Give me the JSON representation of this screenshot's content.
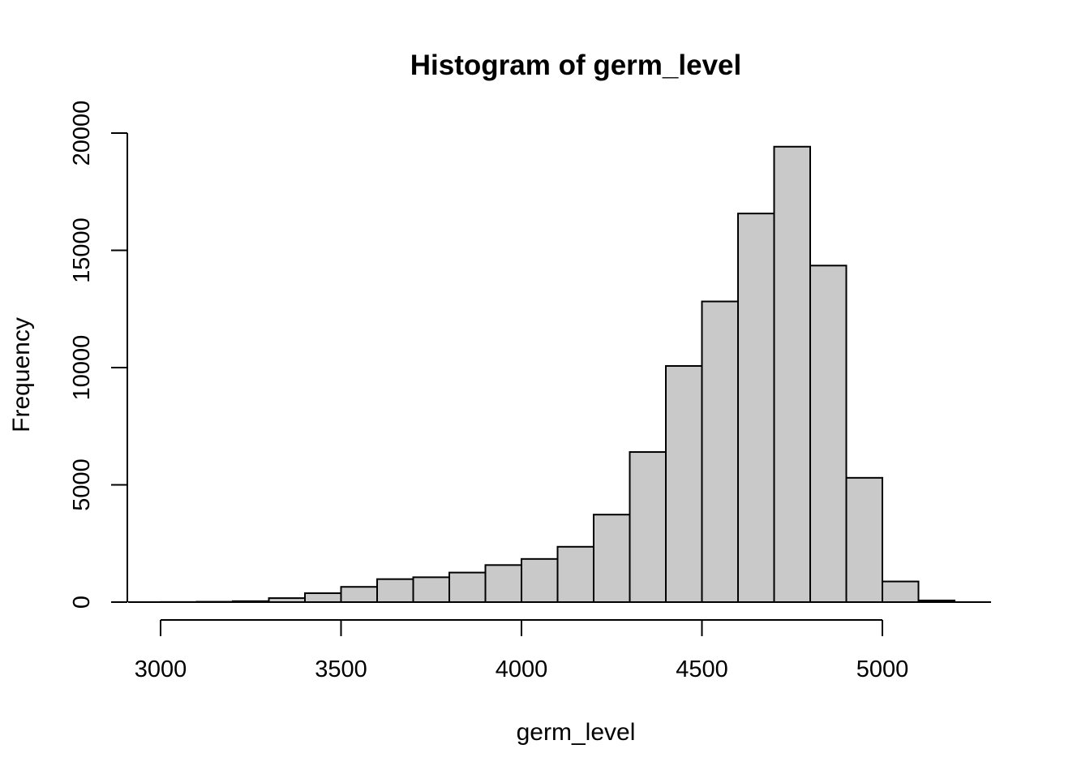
{
  "chart_data": {
    "type": "bar",
    "subtype": "histogram",
    "title": "Histogram of germ_level",
    "xlabel": "germ_level",
    "ylabel": "Frequency",
    "bin_width": 100,
    "bins": [
      [
        3000,
        3100
      ],
      [
        3100,
        3200
      ],
      [
        3200,
        3300
      ],
      [
        3300,
        3400
      ],
      [
        3400,
        3500
      ],
      [
        3500,
        3600
      ],
      [
        3600,
        3700
      ],
      [
        3700,
        3800
      ],
      [
        3800,
        3900
      ],
      [
        3900,
        4000
      ],
      [
        4000,
        4100
      ],
      [
        4100,
        4200
      ],
      [
        4200,
        4300
      ],
      [
        4300,
        4400
      ],
      [
        4400,
        4500
      ],
      [
        4500,
        4600
      ],
      [
        4600,
        4700
      ],
      [
        4700,
        4800
      ],
      [
        4800,
        4900
      ],
      [
        4900,
        5000
      ],
      [
        5000,
        5100
      ],
      [
        5100,
        5200
      ]
    ],
    "values": [
      5,
      15,
      40,
      170,
      380,
      650,
      980,
      1060,
      1260,
      1580,
      1840,
      2360,
      3730,
      6400,
      10070,
      12820,
      16570,
      19420,
      14350,
      5300,
      880,
      70
    ],
    "xlim": [
      3000,
      5200
    ],
    "ylim": [
      0,
      20000
    ],
    "x_ticks": [
      "3000",
      "3500",
      "4000",
      "4500",
      "5000"
    ],
    "y_ticks": [
      "0",
      "5000",
      "10000",
      "15000",
      "20000"
    ],
    "bar_fill": "#c9c9c9",
    "grid": false,
    "legend": "none"
  }
}
